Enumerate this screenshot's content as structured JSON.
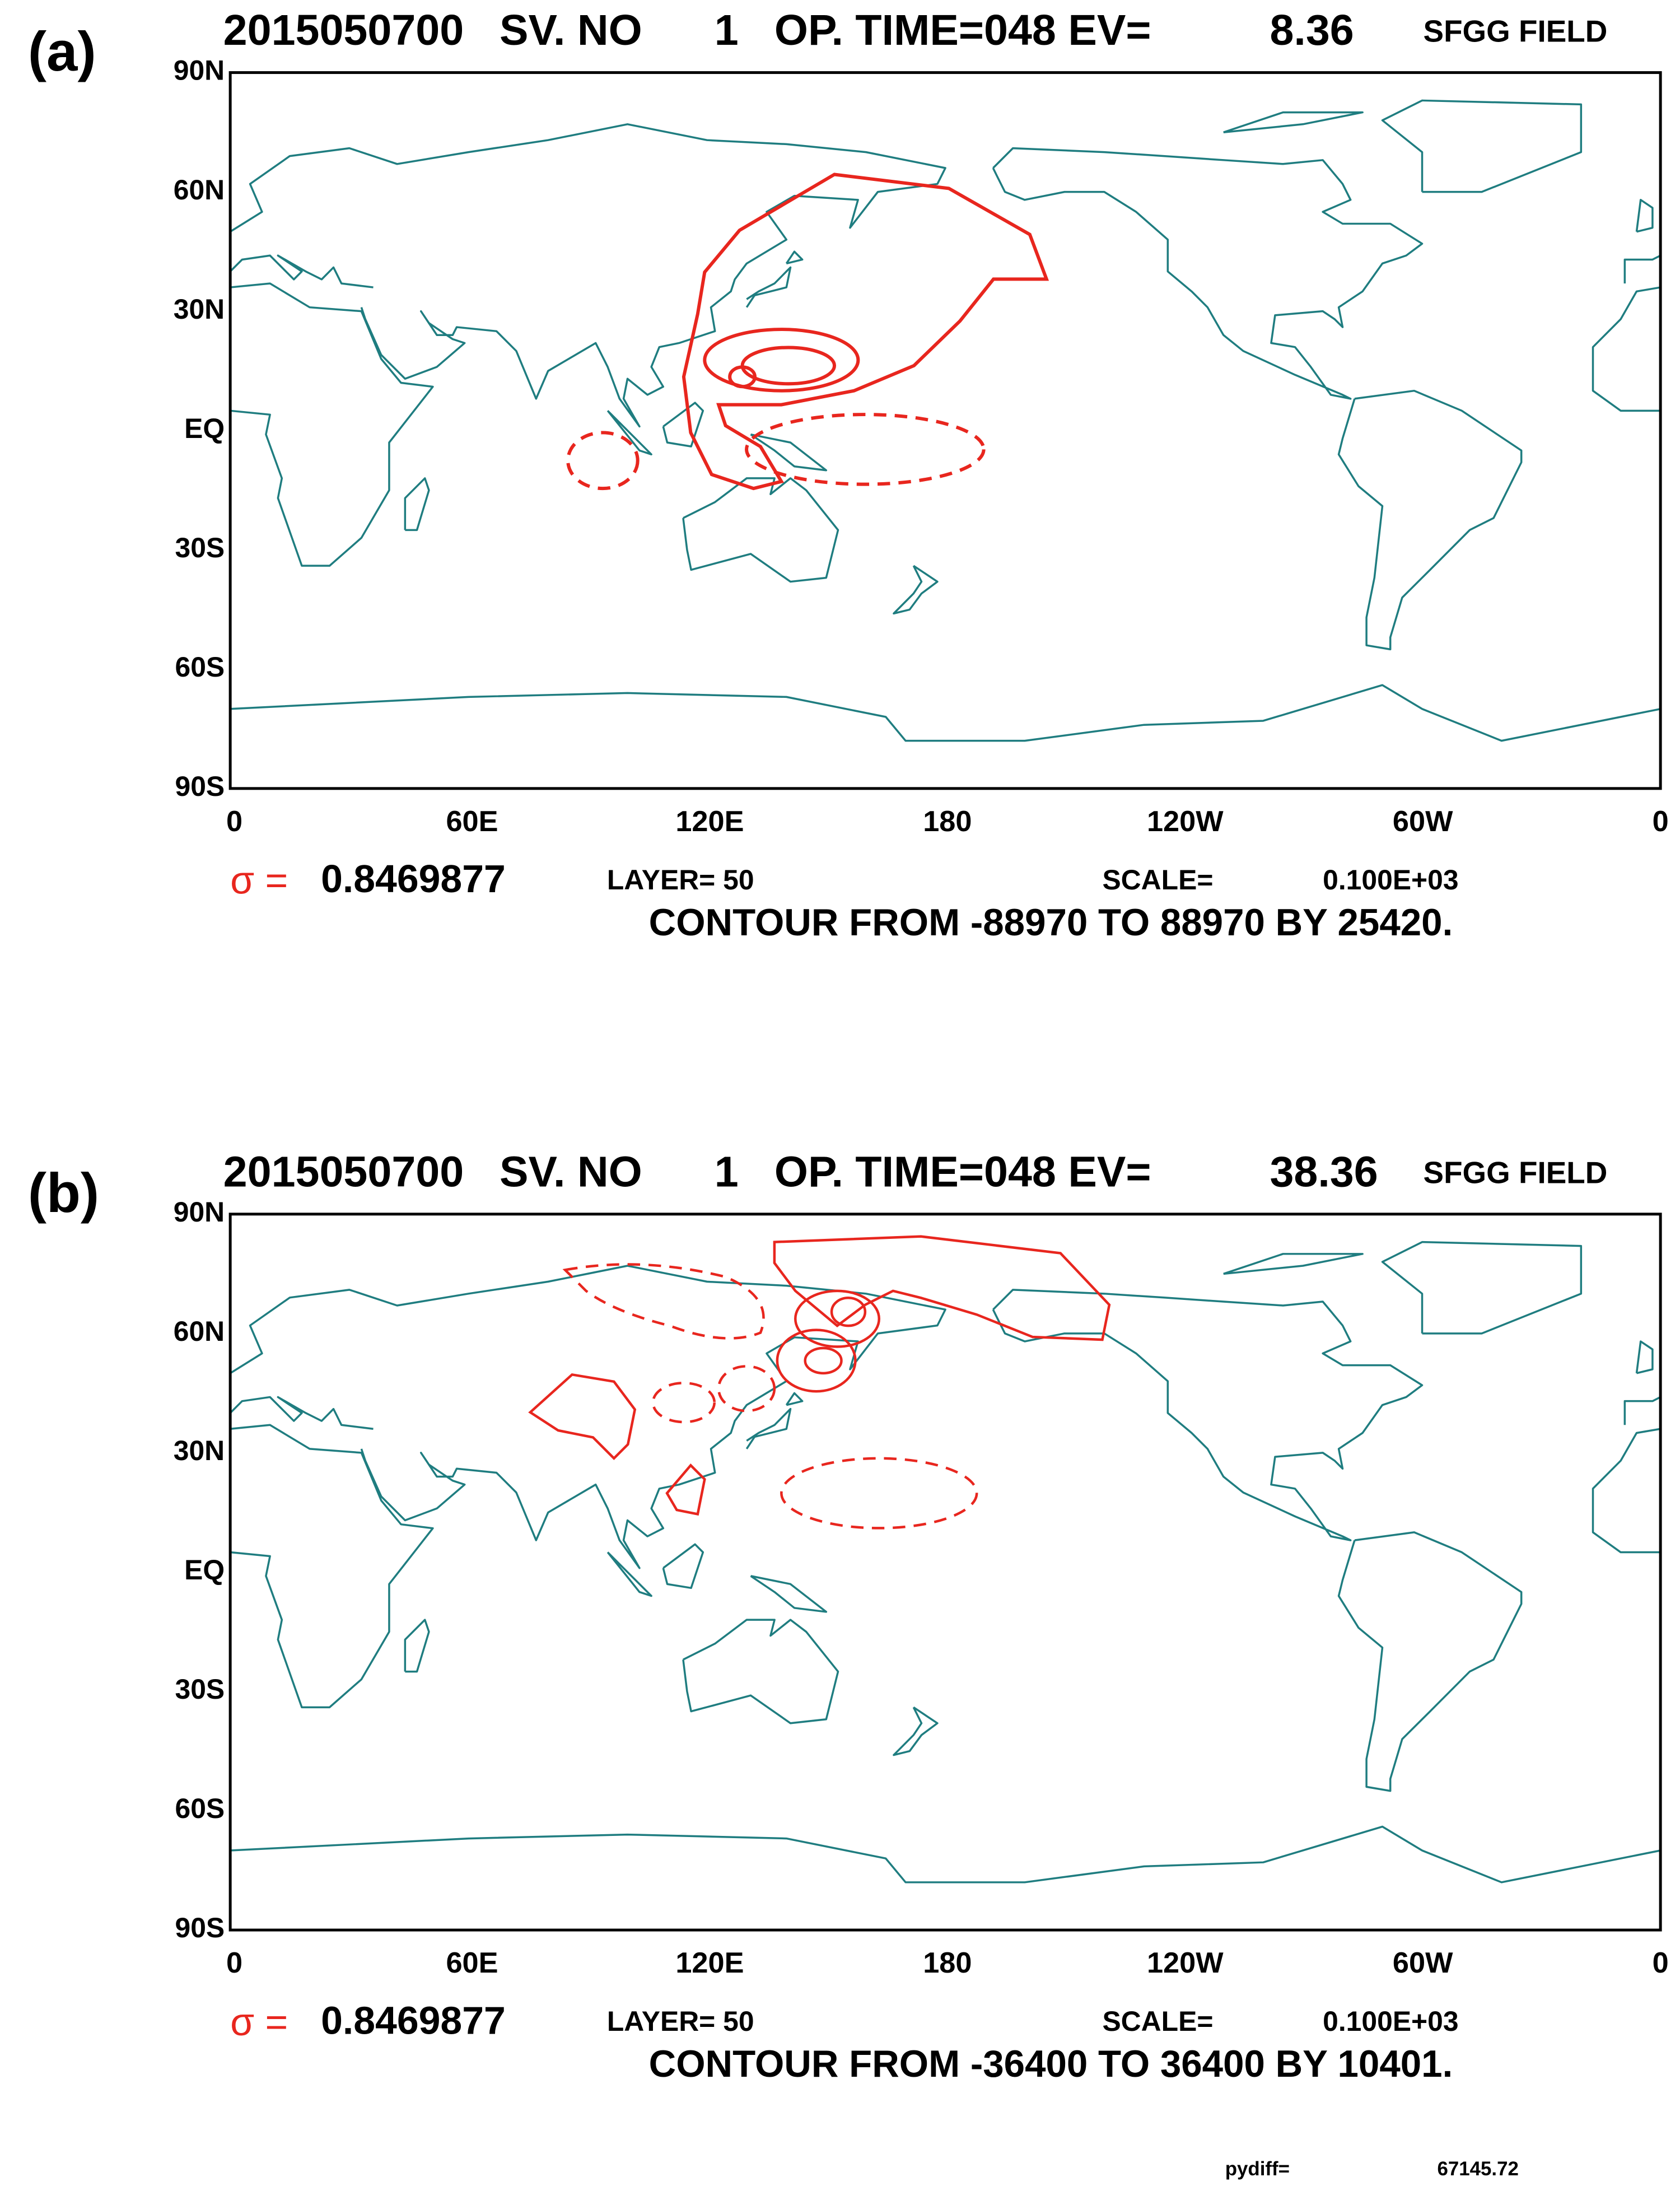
{
  "panels": [
    {
      "label": "(a)",
      "title": {
        "date": "2015050700",
        "sv_label": "SV. NO",
        "sv_number": "1",
        "op_time": "OP. TIME=048 EV=",
        "ev": "8.36",
        "field": "SFGG FIELD"
      },
      "sigma": {
        "symbol": "σ =",
        "value": "0.8469877"
      },
      "layer": "LAYER= 50",
      "scale_label": "SCALE=",
      "scale_value": "0.100E+03",
      "contour": "CONTOUR FROM -88970 TO 88970 BY 25420."
    },
    {
      "label": "(b)",
      "title": {
        "date": "2015050700",
        "sv_label": "SV. NO",
        "sv_number": "1",
        "op_time": "OP. TIME=048 EV=",
        "ev": "38.36",
        "field": "SFGG FIELD"
      },
      "sigma": {
        "symbol": "σ =",
        "value": "0.8469877"
      },
      "layer": "LAYER= 50",
      "scale_label": "SCALE=",
      "scale_value": "0.100E+03",
      "contour": "CONTOUR FROM -36400 TO 36400 BY 10401."
    }
  ],
  "lat_labels": [
    "90N",
    "60N",
    "30N",
    "EQ",
    "30S",
    "60S",
    "90S"
  ],
  "lon_labels": [
    "0",
    "60E",
    "120E",
    "180",
    "120W",
    "60W",
    "0"
  ],
  "footer": {
    "label": "pydiff=",
    "value": "67145.72"
  }
}
